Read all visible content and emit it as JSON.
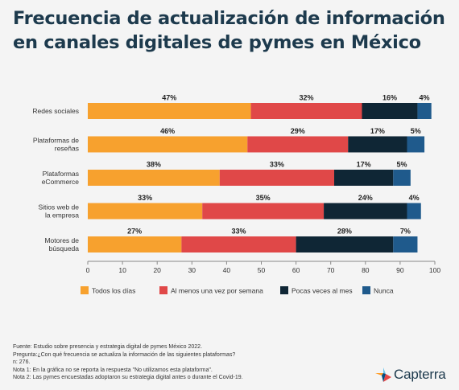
{
  "title_lines": [
    "Frecuencia de actualización de información",
    "en canales digitales de pymes en México"
  ],
  "chart_data": {
    "type": "bar",
    "orientation": "horizontal",
    "stacked": true,
    "categories": [
      [
        "Redes sociales"
      ],
      [
        "Plataformas de",
        "reseñas"
      ],
      [
        "Plataformas",
        "eCommerce"
      ],
      [
        "Sitios web de",
        "la empresa"
      ],
      [
        "Motores de",
        "búsqueda"
      ]
    ],
    "series": [
      {
        "name": "Todos los días",
        "color": "#f7a12e",
        "values": [
          47,
          46,
          38,
          33,
          27
        ]
      },
      {
        "name": "Al menos una vez por semana",
        "color": "#e04848",
        "values": [
          32,
          29,
          33,
          35,
          33
        ]
      },
      {
        "name": "Pocas veces al mes",
        "color": "#0f2635",
        "values": [
          16,
          17,
          17,
          24,
          28
        ]
      },
      {
        "name": "Nunca",
        "color": "#1f5a8c",
        "values": [
          4,
          5,
          5,
          4,
          7
        ]
      }
    ],
    "data_labels": [
      [
        "47%",
        "32%",
        "16%",
        "4%"
      ],
      [
        "46%",
        "29%",
        "17%",
        "5%"
      ],
      [
        "38%",
        "33%",
        "17%",
        "5%"
      ],
      [
        "33%",
        "35%",
        "24%",
        "4%"
      ],
      [
        "27%",
        "33%",
        "28%",
        "7%"
      ]
    ],
    "xlim": [
      0,
      100
    ],
    "xticks": [
      0,
      10,
      20,
      30,
      40,
      50,
      60,
      70,
      80,
      90,
      100
    ],
    "legend_position": "bottom",
    "grid": false
  },
  "footer": {
    "lines": [
      "Fuente: Estudio sobre presencia y estrategia digital de pymes México 2022.",
      "Pregunta:¿Con qué frecuencia se actualiza la información de las siguientes plataformas?",
      "n: 276.",
      "Nota 1: En la gráfica no se reporta la respuesta \"No utilizamos esta plataforma\".",
      "Nota 2: Las pymes encuestadas adoptaron su estrategia digital antes o durante el Covid-19."
    ]
  },
  "brand": {
    "name": "Capterra",
    "colors": [
      "#ff9d28",
      "#68c5ed",
      "#044d80",
      "#e54747"
    ]
  }
}
